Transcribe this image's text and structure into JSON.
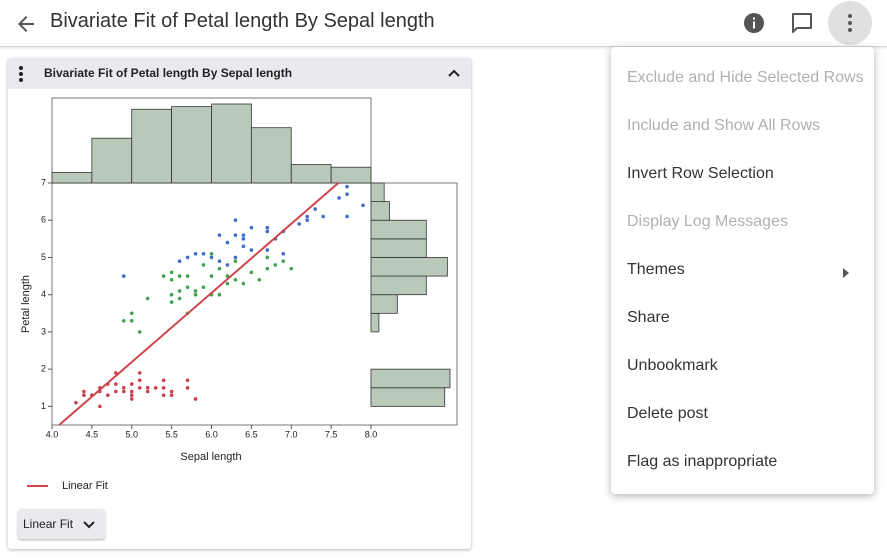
{
  "header": {
    "title": "Bivariate Fit of Petal length By Sepal length"
  },
  "card": {
    "title": "Bivariate Fit of Petal length By Sepal length",
    "button": "Linear Fit"
  },
  "menu": [
    {
      "label": "Exclude and Hide Selected Rows",
      "disabled": true
    },
    {
      "label": "Include and Show All Rows",
      "disabled": true
    },
    {
      "label": "Invert Row Selection",
      "disabled": false
    },
    {
      "label": "Display Log Messages",
      "disabled": true
    },
    {
      "label": "Themes",
      "disabled": false,
      "submenu": true
    },
    {
      "label": "Share",
      "disabled": false
    },
    {
      "label": "Unbookmark",
      "disabled": false
    },
    {
      "label": "Delete post",
      "disabled": false
    },
    {
      "label": "Flag as inappropriate",
      "disabled": false
    }
  ],
  "chart_data": {
    "type": "scatter",
    "x_label": "Sepal length",
    "y_label": "Petal length",
    "xlim": [
      4.0,
      8.0
    ],
    "ylim": [
      0.5,
      7
    ],
    "xticks": [
      {
        "value": 4.0,
        "label": "4.0"
      },
      4.5,
      {
        "value": 5.0,
        "label": "5.0"
      },
      5.5,
      {
        "value": 6.0,
        "label": "6.0"
      },
      6.5,
      {
        "value": 7.0,
        "label": "7.0"
      },
      7.5,
      {
        "value": 8.0,
        "label": "8.0"
      }
    ],
    "yticks": [
      1,
      2,
      3,
      4,
      5,
      6,
      7
    ],
    "series": [
      {
        "color": "#c8404f",
        "x": [
          4.3,
          4.4,
          4.4,
          4.5,
          4.6,
          4.6,
          4.6,
          4.7,
          4.7,
          4.8,
          4.8,
          4.8,
          4.9,
          4.9,
          5.0,
          5.0,
          5.0,
          5.1,
          5.1,
          5.1,
          5.2,
          5.2,
          5.3,
          5.4,
          5.4,
          5.5,
          5.5,
          5.7,
          5.7,
          5.8,
          5.0,
          5.4
        ],
        "y": [
          1.1,
          1.4,
          1.3,
          1.3,
          1.4,
          1.5,
          1.0,
          1.6,
          1.3,
          1.6,
          1.4,
          1.9,
          1.5,
          1.4,
          1.6,
          1.4,
          1.2,
          1.5,
          1.7,
          1.9,
          1.5,
          1.4,
          1.5,
          1.7,
          1.5,
          1.4,
          1.3,
          1.7,
          1.5,
          1.2,
          1.3,
          1.3
        ]
      },
      {
        "color": "#3fa34d",
        "x": [
          4.9,
          5.0,
          5.0,
          5.1,
          5.2,
          5.5,
          5.5,
          5.5,
          5.6,
          5.6,
          5.6,
          5.7,
          5.7,
          5.7,
          5.8,
          5.8,
          5.9,
          5.9,
          6.0,
          6.0,
          6.0,
          6.1,
          6.1,
          6.2,
          6.2,
          6.3,
          6.3,
          6.4,
          6.5,
          6.6,
          6.7,
          6.7,
          6.8,
          6.9,
          7.0,
          5.4,
          5.5
        ],
        "y": [
          3.3,
          3.3,
          3.5,
          3.0,
          3.9,
          4.0,
          3.8,
          4.4,
          4.1,
          3.9,
          4.5,
          4.2,
          4.5,
          3.5,
          4.0,
          4.1,
          4.2,
          4.8,
          4.5,
          4.0,
          5.1,
          4.7,
          4.0,
          4.3,
          4.5,
          4.9,
          4.4,
          4.3,
          4.6,
          4.4,
          4.7,
          5.0,
          4.8,
          4.9,
          4.7,
          4.5,
          4.6
        ]
      },
      {
        "color": "#3d6ccc",
        "x": [
          4.9,
          5.6,
          5.7,
          5.8,
          5.9,
          6.0,
          6.1,
          6.2,
          6.2,
          6.3,
          6.3,
          6.3,
          6.4,
          6.4,
          6.5,
          6.5,
          6.7,
          6.7,
          6.8,
          6.9,
          6.9,
          7.1,
          7.2,
          7.2,
          7.3,
          7.4,
          7.6,
          7.7,
          7.7,
          7.7,
          7.9,
          6.1,
          6.4,
          6.7
        ],
        "y": [
          4.5,
          4.9,
          5.0,
          5.1,
          5.1,
          5.0,
          5.6,
          4.8,
          5.4,
          5.0,
          5.6,
          6.0,
          5.3,
          5.5,
          5.2,
          5.8,
          5.7,
          5.8,
          5.5,
          5.1,
          5.7,
          5.9,
          6.0,
          6.1,
          6.3,
          6.1,
          6.6,
          6.7,
          6.9,
          6.1,
          6.4,
          4.9,
          5.6,
          5.2
        ]
      }
    ],
    "fit": {
      "name": "Linear Fit",
      "color": "#d0454c",
      "x": [
        4.09,
        7.59
      ],
      "y": [
        0.5,
        7
      ]
    },
    "x_histogram": {
      "color": "#b8c9b9",
      "bins": [
        4.0,
        4.5,
        5.0,
        5.5,
        6.0,
        6.5,
        7.0,
        7.5,
        8.0
      ],
      "counts": [
        4,
        17,
        28,
        29,
        30,
        21,
        7,
        6
      ]
    },
    "y_histogram": {
      "color": "#b8c9b9",
      "bins": [
        1.0,
        1.5,
        2.0,
        2.5,
        3.0,
        3.5,
        4.0,
        4.5,
        5.0,
        5.5,
        6.0,
        6.5,
        7.0
      ],
      "counts": [
        28,
        30,
        0,
        0,
        3,
        10,
        21,
        29,
        21,
        21,
        7,
        5
      ]
    }
  }
}
